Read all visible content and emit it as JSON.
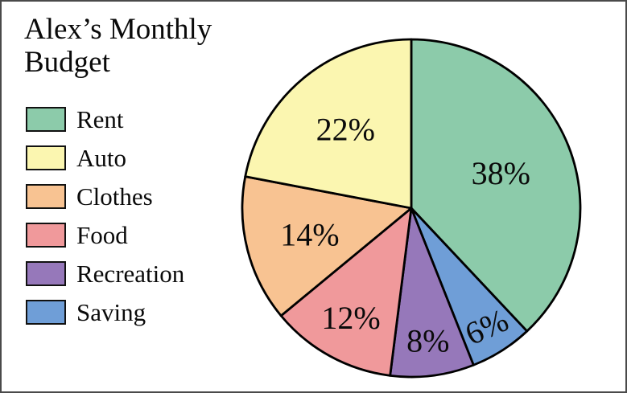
{
  "chart_data": {
    "type": "pie",
    "title": "Alex’s Monthly Budget",
    "direction": "clockwise",
    "start_angle_deg": 0,
    "stroke_color": "#000000",
    "slices": [
      {
        "label": "Rent",
        "value_pct": 38,
        "display": "38%",
        "color": "#8ccbaa",
        "label_r": 0.57,
        "label_rotation_deg": 0
      },
      {
        "label": "Saving",
        "value_pct": 6,
        "display": "6%",
        "color": "#6f9ed7",
        "label_r": 0.83,
        "label_rotation_deg": -24
      },
      {
        "label": "Recreation",
        "value_pct": 8,
        "display": "8%",
        "color": "#9678ba",
        "label_r": 0.79,
        "label_rotation_deg": 0
      },
      {
        "label": "Food",
        "value_pct": 12,
        "display": "12%",
        "color": "#f0999b",
        "label_r": 0.74,
        "label_rotation_deg": 0
      },
      {
        "label": "Clothes",
        "value_pct": 14,
        "display": "14%",
        "color": "#f8c392",
        "label_r": 0.62,
        "label_rotation_deg": 0
      },
      {
        "label": "Auto",
        "value_pct": 22,
        "display": "22%",
        "color": "#fbf6b0",
        "label_r": 0.61,
        "label_rotation_deg": 0
      }
    ],
    "legend": {
      "position": "left",
      "items": [
        "Rent",
        "Auto",
        "Clothes",
        "Food",
        "Recreation",
        "Saving"
      ]
    }
  }
}
